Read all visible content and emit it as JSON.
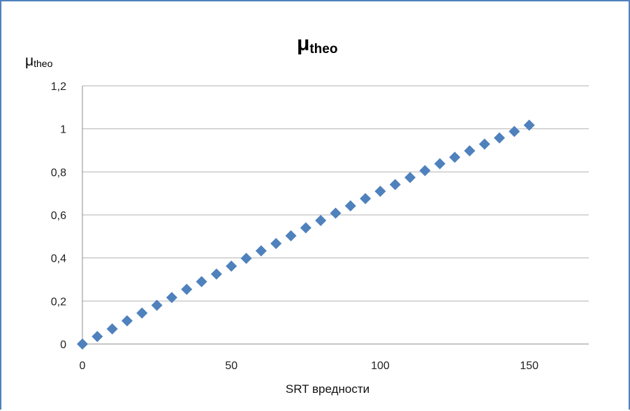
{
  "chart_data": {
    "type": "scatter",
    "title": "μ",
    "title_subscript": "theo",
    "ylabel": "μ",
    "ylabel_subscript": "theo",
    "xlabel": "SRT вредности",
    "xlim": [
      0,
      170
    ],
    "ylim": [
      0,
      1.2
    ],
    "x_ticks": [
      0,
      50,
      100,
      150
    ],
    "x_tick_labels": [
      "0",
      "50",
      "100",
      "150"
    ],
    "y_ticks": [
      0,
      0.2,
      0.4,
      0.6,
      0.8,
      1,
      1.2
    ],
    "y_tick_labels": [
      "0",
      "0,2",
      "0,4",
      "0,6",
      "0,8",
      "1",
      "1,2"
    ],
    "grid": true,
    "marker": "diamond",
    "series": [
      {
        "color": "#4f81bd",
        "x": [
          0,
          5,
          10,
          15,
          20,
          25,
          30,
          35,
          40,
          45,
          50,
          55,
          60,
          65,
          70,
          75,
          80,
          85,
          90,
          95,
          100,
          105,
          110,
          115,
          120,
          125,
          130,
          135,
          140,
          145,
          150
        ],
        "y": [
          0,
          0.035,
          0.07,
          0.108,
          0.144,
          0.18,
          0.216,
          0.254,
          0.29,
          0.325,
          0.362,
          0.398,
          0.433,
          0.467,
          0.503,
          0.54,
          0.574,
          0.608,
          0.642,
          0.676,
          0.71,
          0.741,
          0.774,
          0.806,
          0.838,
          0.868,
          0.898,
          0.929,
          0.958,
          0.988,
          1.017
        ]
      }
    ]
  }
}
